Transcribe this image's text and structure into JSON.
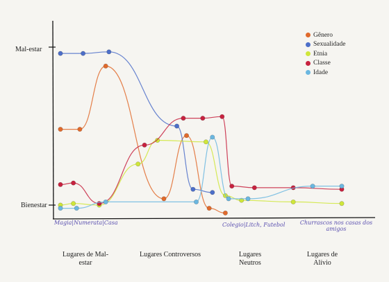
{
  "chart_data": {
    "type": "line",
    "y_labels": {
      "top": "Mal-estar",
      "bottom": "Bienestar"
    },
    "ylim": [
      0,
      100
    ],
    "categories": [
      "Magia|Numerata|Casa",
      "Colegio|Litch, Futebol",
      "Churrascos nos casas dos amigos"
    ],
    "groups": [
      "Lugares de Mal-estar",
      "Lugares Controversos",
      "Lugares Neutros",
      "Lugares de Alívio"
    ],
    "legend": [
      "Gênero",
      "Sexualidade",
      "Etnia",
      "Classe",
      "Idade"
    ],
    "grid": false,
    "series": [
      {
        "name": "Gênero",
        "color": "#e06a2c",
        "points": [
          [
            1.0,
            48
          ],
          [
            1.3,
            48
          ],
          [
            1.7,
            88
          ],
          [
            2.6,
            4
          ],
          [
            2.95,
            44
          ],
          [
            3.3,
            -2
          ],
          [
            3.55,
            -5
          ]
        ]
      },
      {
        "name": "Sexualidade",
        "color": "#4d6fc9",
        "points": [
          [
            1.0,
            96
          ],
          [
            1.35,
            96
          ],
          [
            1.75,
            97
          ],
          [
            2.8,
            50
          ],
          [
            3.05,
            10
          ],
          [
            3.35,
            8
          ]
        ]
      },
      {
        "name": "Etnia",
        "color": "#cfe63a",
        "points": [
          [
            1.0,
            0
          ],
          [
            1.2,
            1
          ],
          [
            1.6,
            0
          ],
          [
            2.2,
            26
          ],
          [
            2.5,
            41
          ],
          [
            3.25,
            40
          ],
          [
            3.55,
            6
          ],
          [
            3.8,
            3
          ],
          [
            4.6,
            2
          ],
          [
            5.35,
            1
          ]
        ]
      },
      {
        "name": "Classe",
        "color": "#c7223f",
        "points": [
          [
            1.0,
            13
          ],
          [
            1.2,
            14
          ],
          [
            1.6,
            1
          ],
          [
            2.3,
            38
          ],
          [
            2.9,
            55
          ],
          [
            3.2,
            55
          ],
          [
            3.5,
            56
          ],
          [
            3.65,
            12
          ],
          [
            4.0,
            11
          ],
          [
            4.6,
            11
          ],
          [
            5.35,
            10
          ]
        ]
      },
      {
        "name": "Idade",
        "color": "#6bb7e0",
        "points": [
          [
            1.0,
            -2
          ],
          [
            1.25,
            -2
          ],
          [
            1.7,
            2
          ],
          [
            3.1,
            2
          ],
          [
            3.35,
            43
          ],
          [
            3.6,
            4
          ],
          [
            3.9,
            4
          ],
          [
            4.9,
            12
          ],
          [
            5.35,
            12
          ]
        ]
      }
    ],
    "group_centers": [
      1.3,
      2.9,
      4.05,
      5.0
    ]
  }
}
